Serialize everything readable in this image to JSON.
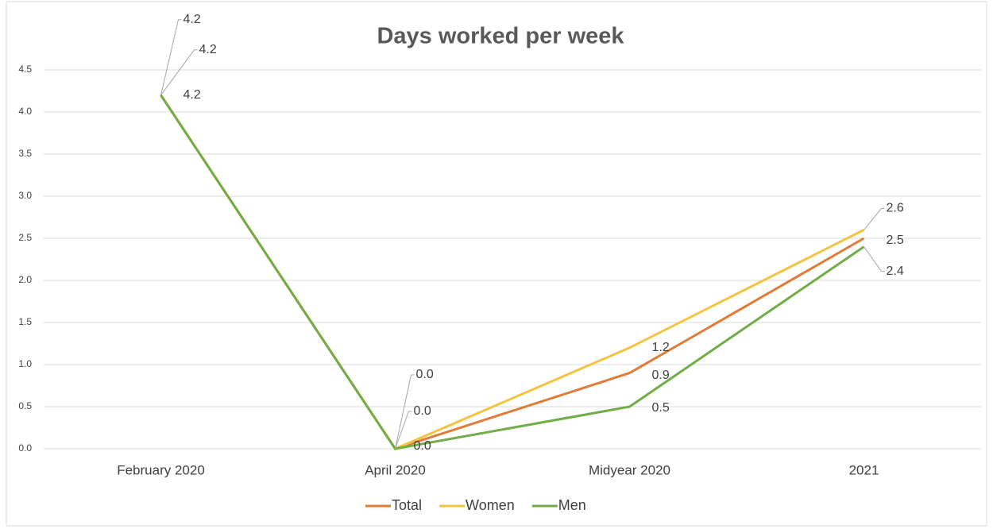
{
  "chart_data": {
    "type": "line",
    "title": "Days worked per week",
    "categories": [
      "February 2020",
      "April 2020",
      "Midyear 2020",
      "2021"
    ],
    "series": [
      {
        "name": "Total",
        "color": "#e07b39",
        "values": [
          4.2,
          0,
          0.9,
          2.5
        ],
        "value_labels": [
          "4.2",
          "0.0",
          "0.9",
          "2.5"
        ]
      },
      {
        "name": "Women",
        "color": "#f5c342",
        "values": [
          4.2,
          0,
          1.2,
          2.6
        ],
        "value_labels": [
          "4.2",
          "0.0",
          "1.2",
          "2.6"
        ]
      },
      {
        "name": "Men",
        "color": "#70ad47",
        "values": [
          4.2,
          0,
          0.5,
          2.4
        ],
        "value_labels": [
          "4.2",
          "0.0",
          "0.5",
          "2.4"
        ]
      }
    ],
    "ylim": [
      0,
      4.5
    ],
    "yticks": [
      {
        "value": 0,
        "label": "0.0"
      },
      0.5,
      {
        "value": 1,
        "label": "1.0"
      },
      1.5,
      {
        "value": 2,
        "label": "2.0"
      },
      2.5,
      {
        "value": 3,
        "label": "3.0"
      },
      3.5,
      {
        "value": 4,
        "label": "4.0"
      },
      4.5
    ],
    "grid": true,
    "legend": "bottom"
  }
}
